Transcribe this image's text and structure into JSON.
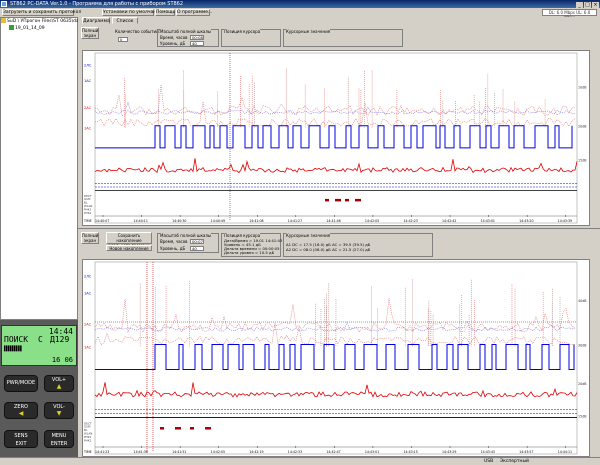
{
  "window": {
    "title": "ST862 PC-DATA Ver.1.0 - Программа для работы с прибором ST862"
  },
  "toolbar": {
    "load_save": "Загрузить и сохранить протокол",
    "defaults": "Установки по умолчанию",
    "help": "Помощь",
    "about": "О программе...",
    "version": "DL: 6.0 Mbps   UL: 6.0 Mbps"
  },
  "tree": {
    "root": "SuD \\ УПрогон Files\\ST 0635\\data",
    "child": "19_01_14_09"
  },
  "device": {
    "time": "14:44",
    "mode": "ПОИСК",
    "channel_c": "С",
    "channel_d": "Д129",
    "bottom_time": "16 06",
    "buttons": [
      {
        "label": "PWR/MODE",
        "arrow": ""
      },
      {
        "label": "VOL+",
        "arrow": "▲"
      },
      {
        "label": "ZERO",
        "arrow": "◀"
      },
      {
        "label": "VOL-",
        "arrow": "▼"
      },
      {
        "label": "SENS\nEXIT",
        "arrow": ""
      },
      {
        "label": "MENU\nENTER",
        "arrow": ""
      }
    ]
  },
  "top": {
    "tabs": [
      "Диаграмма",
      "Список"
    ],
    "fullscreen": "Полный экран",
    "events_label": "Количество событий:",
    "events_value": "0",
    "scale_group": "Масштаб полной шкалы",
    "time_label": "Время, часов",
    "time_value": "00:08",
    "level_label": "Уровень, дБ",
    "level_value": "40",
    "cursor_pos": "Позиция курсора",
    "cursor_vals": "Курсорные значения",
    "x_ticks": [
      "14:40:07",
      "14:40:11",
      "14:40:30",
      "14:40:49",
      "14:41:08",
      "14:41:27",
      "14:41:46",
      "14:42:05",
      "14:42:23",
      "14:42:42",
      "14:43:01",
      "14:43:20",
      "14:43:39"
    ],
    "y_left": [
      "2ЛС",
      "1АС",
      "2АС",
      "1АС"
    ],
    "y_right": [
      "10dB",
      "20dB",
      "15dB"
    ],
    "row_labels": [
      "DECT",
      "GSM",
      "BL",
      "WLAN",
      "PHK1",
      "PHK2"
    ],
    "time_axis": "TIME"
  },
  "bottom": {
    "fullscreen": "Полный экран",
    "save_acc": "Сохранить накопление",
    "realtime": "реального времени",
    "new_acc": "Новое накопление",
    "scale_group": "Масштаб полной шкалы",
    "time_label": "Время, часов",
    "time_value": "00:07",
    "level_label": "Уровень, дБ",
    "level_value": "40",
    "cursor_pos": "Позиция курсора",
    "cursor_vals": "Курсорные значения",
    "cursor_lines": [
      "Дата/Время = 19.01 14:41:43",
      "Уровень = 45.1 дБ",
      "Дельта времени = 00:00:05",
      "Дельта уровня = 10.5 дБ"
    ],
    "cursor_vals_lines": [
      "Δ1 DC = 17.5 (16.0) дБ  AC = 39.5 (39.5) дБ",
      "Δ2 DC = 08.0 (06.0) дБ  AC = 21.5 (27.0) дБ"
    ],
    "x_ticks": [
      "14:41:23",
      "14:41:36",
      "14:41:51",
      "14:42:05",
      "14:42:19",
      "14:42:33",
      "14:42:47",
      "14:43:01",
      "14:43:15",
      "14:43:29",
      "14:43:43",
      "14:43:57",
      "14:44:11"
    ],
    "y_left": [
      "2ЛС",
      "1АС",
      "2АС",
      "1АС"
    ],
    "y_right": [
      "40dB",
      "30dB",
      "20dB",
      "15dB"
    ],
    "row_labels": [
      "DECT",
      "GSM",
      "BL",
      "WLAN",
      "PHK1",
      "PHK2"
    ],
    "time_axis": "TIME"
  },
  "status": {
    "usb": "USB",
    "mode": "Экспертный"
  },
  "colors": {
    "blue": "#0000e0",
    "red": "#e00000",
    "dotted_red": "#e07070",
    "dotted_blue": "#7070e0",
    "lcd": "#8ae088"
  }
}
